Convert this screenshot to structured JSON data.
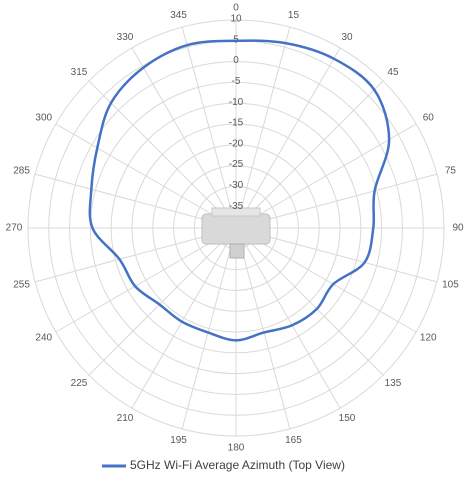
{
  "chart_data": {
    "type": "polar-line",
    "angles": [
      0,
      15,
      30,
      45,
      60,
      75,
      90,
      105,
      120,
      135,
      150,
      165,
      180,
      195,
      210,
      225,
      240,
      255,
      270,
      285,
      300,
      315,
      330,
      345
    ],
    "series": [
      {
        "name": "5GHz Wi-Fi Average Azimuth (Top View)",
        "color": "#4472c4",
        "values": [
          5,
          6,
          7,
          7,
          2.5,
          -5.5,
          -7,
          -8,
          -13,
          -12.5,
          -13,
          -14,
          -13,
          -14,
          -14,
          -14,
          -12,
          -11,
          -5.5,
          -4,
          -1.5,
          2.5,
          4.5,
          5.5
        ]
      }
    ],
    "rlim": [
      -40,
      10
    ],
    "rticks": [
      -35,
      -30,
      -25,
      -20,
      -15,
      -10,
      -5,
      0,
      5,
      10
    ],
    "grid": true,
    "legend": "bottom"
  }
}
